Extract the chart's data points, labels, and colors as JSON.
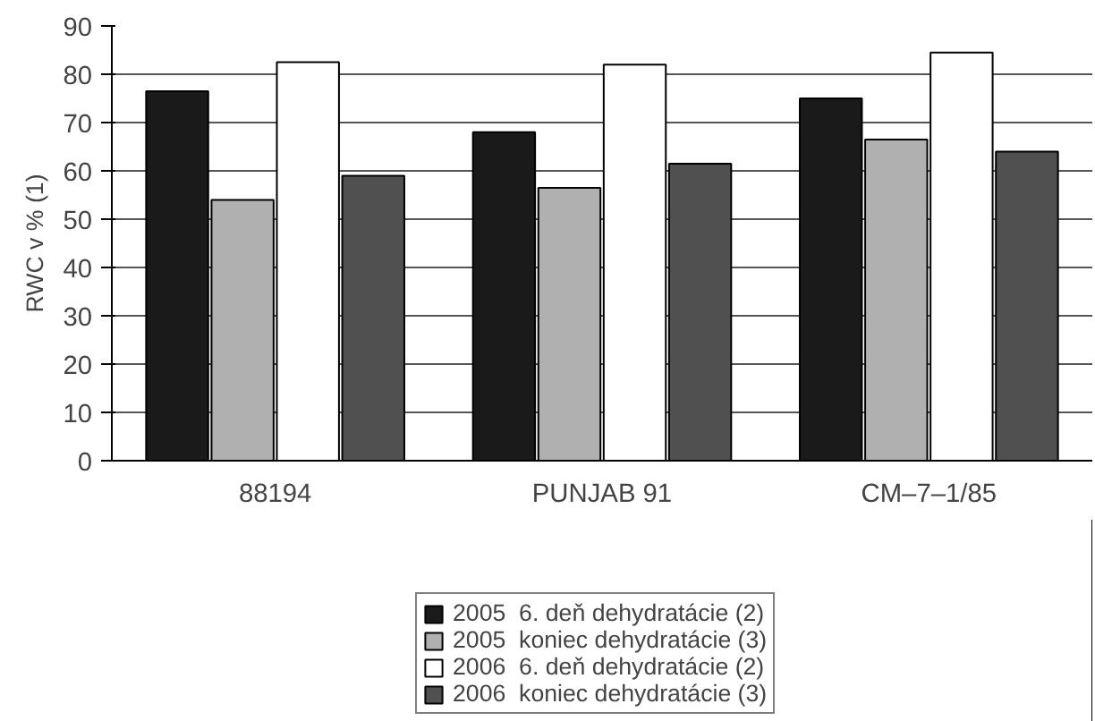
{
  "chart_data": {
    "type": "bar",
    "ylabel": "RWC v % (1)",
    "categories": [
      "88194",
      "PUNJAB 91",
      "CM–7–1/85"
    ],
    "series": [
      {
        "name": "2005  6. deň dehydratácie (2)",
        "color": "#1a1a1a",
        "values": [
          76.5,
          68,
          75
        ]
      },
      {
        "name": "2005  koniec dehydratácie (3)",
        "color": "#b0b0b0",
        "values": [
          54,
          56.5,
          66.5
        ]
      },
      {
        "name": "2006  6. deň dehydratácie (2)",
        "color": "#ffffff",
        "values": [
          82.5,
          82,
          84.5
        ]
      },
      {
        "name": "2006  koniec dehydratácie (3)",
        "color": "#505050",
        "values": [
          59,
          61.5,
          64
        ]
      }
    ],
    "ylim": [
      0,
      90
    ],
    "yticks": [
      0,
      10,
      20,
      30,
      40,
      50,
      60,
      70,
      80,
      90
    ],
    "grid": "y",
    "legend": "bottom"
  }
}
